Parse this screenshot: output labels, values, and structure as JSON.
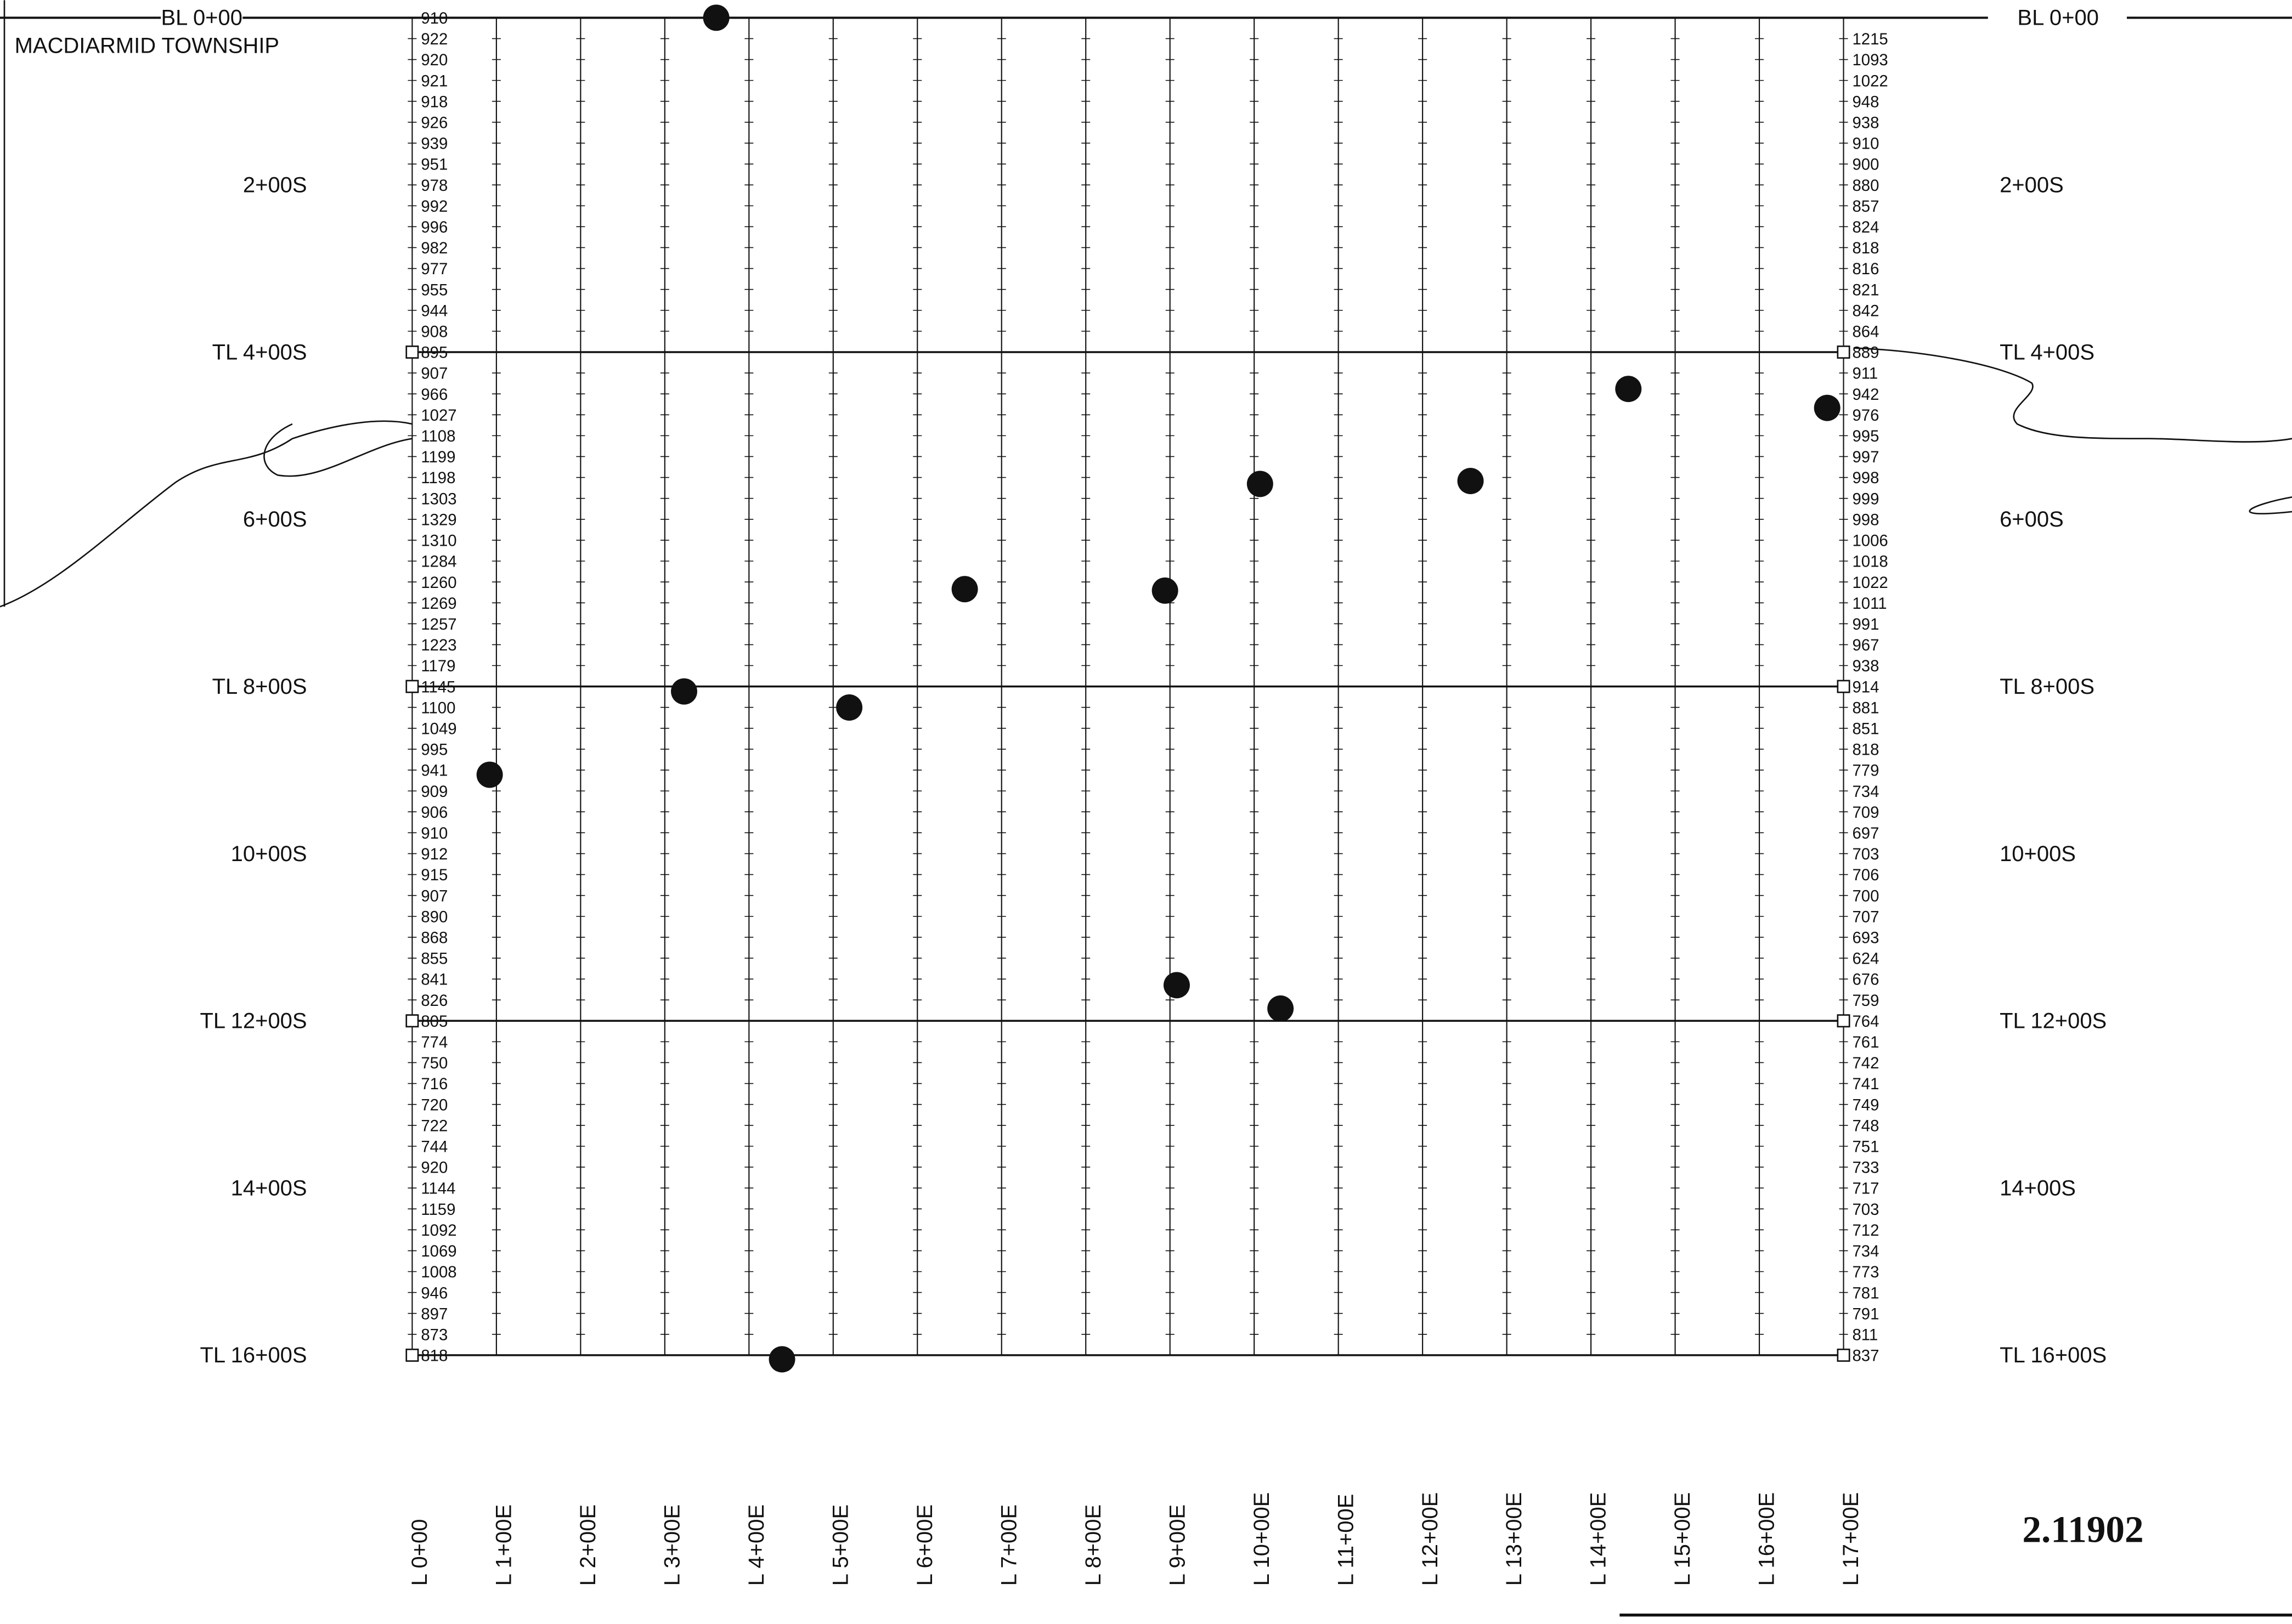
{
  "header": {
    "baseline": "BL 0+00",
    "township": "MACDIARMID TOWNSHIP",
    "sheet_number": "2.11902"
  },
  "stations": [
    "2+00S",
    "TL 4+00S",
    "6+00S",
    "TL 8+00S",
    "10+00S",
    "TL 12+00S",
    "14+00S",
    "TL 16+00S"
  ],
  "lines": [
    {
      "label": "L 0+00",
      "readings": [
        910,
        922,
        920,
        921,
        918,
        926,
        939,
        951,
        978,
        992,
        996,
        982,
        977,
        955,
        944,
        908,
        895,
        907,
        966,
        1027,
        1108,
        1199,
        1198,
        1303,
        1329,
        1310,
        1284,
        1260,
        1269,
        1257,
        1223,
        1179,
        1145,
        1100,
        1049,
        995,
        941,
        909,
        906,
        910,
        912,
        915,
        907,
        890,
        868,
        855,
        841,
        826,
        805,
        774,
        750,
        716,
        720,
        722,
        744,
        920,
        1144,
        1159,
        1092,
        1069,
        1008,
        946,
        897,
        873,
        818
      ]
    },
    {
      "label": "L 1+00E"
    },
    {
      "label": "L 2+00E"
    },
    {
      "label": "L 3+00E"
    },
    {
      "label": "L 4+00E"
    },
    {
      "label": "L 5+00E"
    },
    {
      "label": "L 6+00E"
    },
    {
      "label": "L 7+00E"
    },
    {
      "label": "L 8+00E"
    },
    {
      "label": "L 9+00E"
    },
    {
      "label": "L 10+00E"
    },
    {
      "label": "L 11+00E"
    },
    {
      "label": "L 12+00E"
    },
    {
      "label": "L 13+00E"
    },
    {
      "label": "L 14+00E"
    },
    {
      "label": "L 15+00E"
    },
    {
      "label": "L 16+00E"
    },
    {
      "label": "L 17+00E",
      "readings": [
        1215,
        1093,
        1022,
        948,
        938,
        910,
        900,
        880,
        857,
        824,
        818,
        816,
        821,
        842,
        864,
        889,
        911,
        942,
        976,
        995,
        997,
        998,
        999,
        998,
        1006,
        1018,
        1022,
        1011,
        991,
        967,
        938,
        914,
        881,
        851,
        818,
        779,
        734,
        709,
        697,
        703,
        706,
        700,
        707,
        693,
        624,
        676,
        759,
        764,
        761,
        742,
        741,
        749,
        748,
        751,
        733,
        717,
        703,
        712,
        734,
        773,
        781,
        791,
        811,
        837
      ]
    }
  ]
}
